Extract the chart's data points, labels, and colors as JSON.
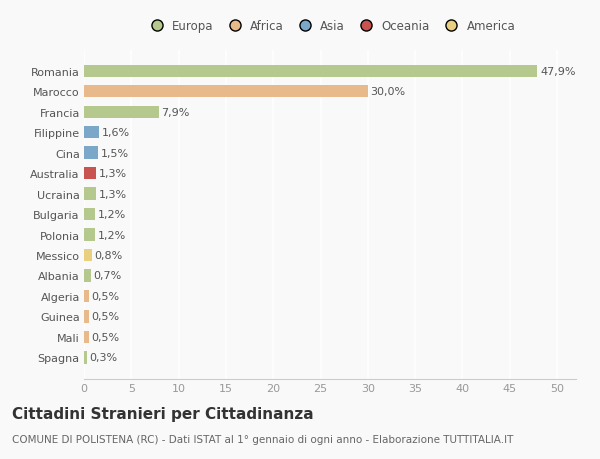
{
  "countries": [
    "Romania",
    "Marocco",
    "Francia",
    "Filippine",
    "Cina",
    "Australia",
    "Ucraina",
    "Bulgaria",
    "Polonia",
    "Messico",
    "Albania",
    "Algeria",
    "Guinea",
    "Mali",
    "Spagna"
  ],
  "values": [
    47.9,
    30.0,
    7.9,
    1.6,
    1.5,
    1.3,
    1.3,
    1.2,
    1.2,
    0.8,
    0.7,
    0.5,
    0.5,
    0.5,
    0.3
  ],
  "labels": [
    "47,9%",
    "30,0%",
    "7,9%",
    "1,6%",
    "1,5%",
    "1,3%",
    "1,3%",
    "1,2%",
    "1,2%",
    "0,8%",
    "0,7%",
    "0,5%",
    "0,5%",
    "0,5%",
    "0,3%"
  ],
  "colors": [
    "#b5c98e",
    "#e8b98a",
    "#b5c98e",
    "#7ba7c9",
    "#7ba7c9",
    "#c9534f",
    "#b5c98e",
    "#b5c98e",
    "#b5c98e",
    "#e8d080",
    "#b5c98e",
    "#e8b98a",
    "#e8b98a",
    "#e8b98a",
    "#b5c98e"
  ],
  "legend_labels": [
    "Europa",
    "Africa",
    "Asia",
    "Oceania",
    "America"
  ],
  "legend_colors": [
    "#b5c98e",
    "#e8b98a",
    "#7ba7c9",
    "#c9534f",
    "#e8d080"
  ],
  "xlim": [
    0,
    52
  ],
  "xticks": [
    0,
    5,
    10,
    15,
    20,
    25,
    30,
    35,
    40,
    45,
    50
  ],
  "title": "Cittadini Stranieri per Cittadinanza",
  "subtitle": "COMUNE DI POLISTENA (RC) - Dati ISTAT al 1° gennaio di ogni anno - Elaborazione TUTTITALIA.IT",
  "background_color": "#f9f9f9",
  "grid_color": "#ffffff",
  "bar_height": 0.6,
  "title_fontsize": 11,
  "subtitle_fontsize": 7.5,
  "tick_label_fontsize": 8,
  "label_fontsize": 8,
  "legend_fontsize": 8.5
}
